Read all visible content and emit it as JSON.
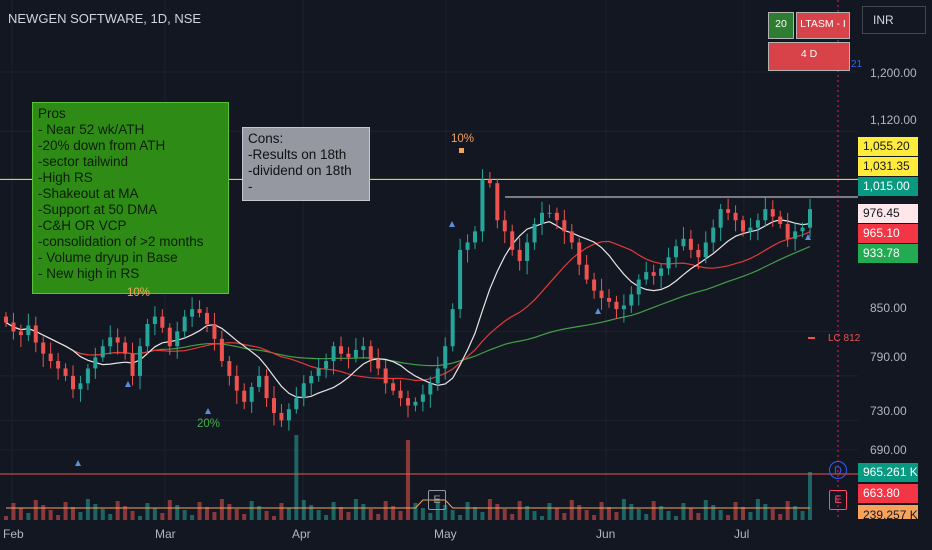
{
  "header": {
    "title": "NEWGEN SOFTWARE, 1D, NSE"
  },
  "indicator": {
    "value": "20",
    "name": "LTASM - I",
    "sub": "4 D",
    "partial": "21"
  },
  "currency": "INR",
  "notes": {
    "pros": "Pros\n- Near 52 wk/ATH\n-20% down from ATH\n-sector tailwind\n-High RS\n-Shakeout at MA\n-Support at 50 DMA\n-C&H OR VCP\n-consolidation of >2 months\n- Volume dryup in Base\n- New high in RS",
    "cons": "Cons:\n-Results on 18th\n-dividend on 18th\n-"
  },
  "markers": {
    "m10_top": "10%",
    "m10_left": "10%",
    "m20": "20%",
    "lc": "LC 812",
    "earnings": "E",
    "dividend": "D"
  },
  "price_labels": [
    {
      "id": "p1",
      "text": "1,055.20",
      "bg": "#ffeb3b",
      "fg": "#131722"
    },
    {
      "id": "p2",
      "text": "1,031.35",
      "bg": "#ffeb3b",
      "fg": "#131722"
    },
    {
      "id": "p3",
      "text": "1,015.00",
      "bg": "#089981",
      "fg": "#ffffff"
    },
    {
      "id": "p4",
      "text": "976.45",
      "bg": "#fde7ea",
      "fg": "#131722"
    },
    {
      "id": "p5",
      "text": "965.10",
      "bg": "#f23645",
      "fg": "#ffffff"
    },
    {
      "id": "p6",
      "text": "933.78",
      "bg": "#22ab52",
      "fg": "#ffffff"
    },
    {
      "id": "p7",
      "text": "965.261 K",
      "bg": "#089981",
      "fg": "#ffffff"
    },
    {
      "id": "p8",
      "text": "663.80",
      "bg": "#f23645",
      "fg": "#ffffff"
    },
    {
      "id": "p9",
      "text": "239.257 K",
      "bg": "#f7a35c",
      "fg": "#131722"
    }
  ],
  "colors": {
    "up": "#26a69a",
    "down": "#ef5350",
    "ma_white": "#e6e6e6",
    "ma_red": "#e53935",
    "ma_green": "#43a047",
    "hline_yellow": "#ffeb3b",
    "hline_red": "#ef5350"
  },
  "chart_data": {
    "type": "candlestick",
    "y_ticks": [
      "1,200.00",
      "1,120.00",
      "850.00",
      "790.00",
      "730.00",
      "690.00"
    ],
    "x_labels": [
      "Feb",
      "Mar",
      "Apr",
      "May",
      "Jun",
      "Jul"
    ],
    "horizontal_lines": [
      1055.2,
      1031.35
    ],
    "last_close": 1015.0,
    "volume_last": "965.261 K",
    "volume_avg": "239.257 K",
    "ohlc_approx": {
      "start_date": "2024-01-26",
      "closes": [
        862,
        850,
        845,
        858,
        835,
        820,
        810,
        800,
        790,
        772,
        780,
        800,
        815,
        830,
        842,
        835,
        820,
        790,
        830,
        860,
        870,
        855,
        830,
        850,
        870,
        880,
        875,
        860,
        840,
        810,
        790,
        770,
        755,
        775,
        790,
        760,
        740,
        730,
        745,
        760,
        780,
        790,
        800,
        810,
        830,
        820,
        815,
        825,
        830,
        812,
        800,
        780,
        770,
        760,
        750,
        755,
        765,
        780,
        800,
        830,
        880,
        960,
        970,
        985,
        1055,
        1050,
        1000,
        985,
        960,
        945,
        970,
        995,
        1010,
        1010,
        1000,
        985,
        970,
        940,
        920,
        905,
        895,
        890,
        880,
        885,
        900,
        920,
        930,
        925,
        935,
        950,
        965,
        975,
        960,
        950,
        970,
        990,
        1015,
        1010,
        1000,
        985,
        990,
        1000,
        1015,
        1005,
        995,
        975,
        985,
        990,
        1015
      ]
    }
  }
}
